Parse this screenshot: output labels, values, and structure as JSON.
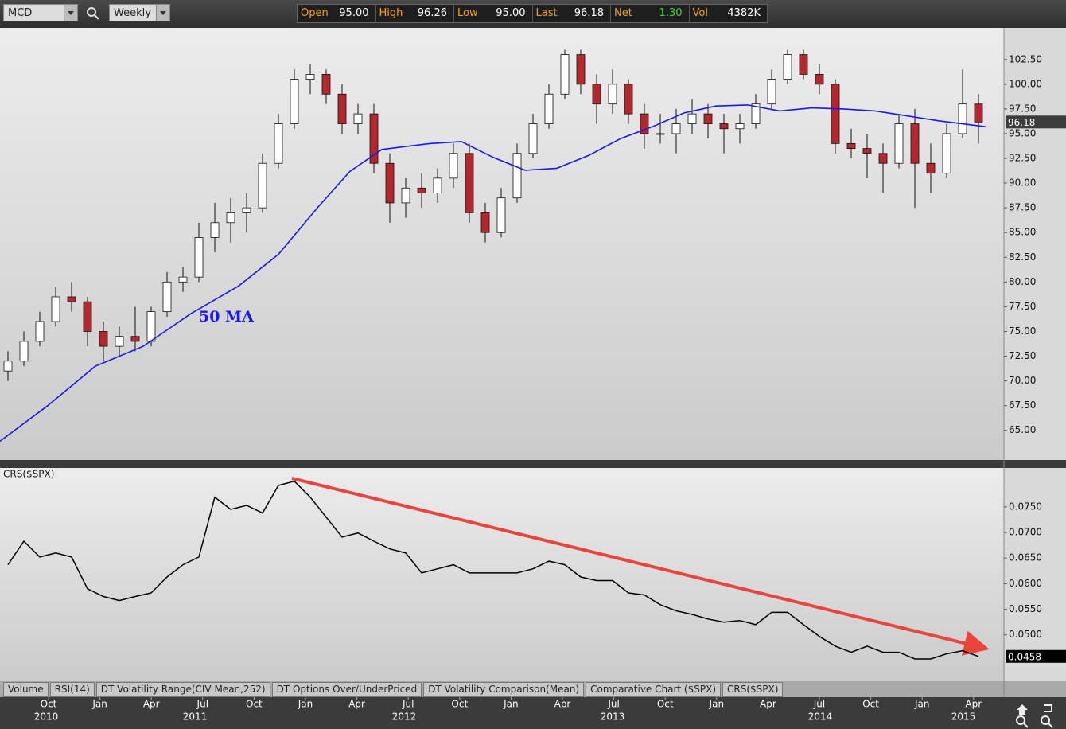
{
  "toolbar": {
    "symbol": "MCD",
    "period": "Weekly",
    "quote": [
      {
        "label": "Open",
        "value": "95.00"
      },
      {
        "label": "High",
        "value": "96.26"
      },
      {
        "label": "Low",
        "value": "95.00"
      },
      {
        "label": "Last",
        "value": "96.18"
      },
      {
        "label": "Net",
        "value": "1.30"
      },
      {
        "label": "Vol",
        "value": "4382K"
      }
    ]
  },
  "chart_data": [
    {
      "type": "candlestick",
      "up_color": "#ffffff",
      "down_color": "#b3272d",
      "xlim": [
        -0.5,
        62.6
      ],
      "ylim": [
        62.0,
        105.7
      ],
      "yticks": [
        {
          "value": 65,
          "label": "65.00"
        },
        {
          "value": 67.5,
          "label": "67.50"
        },
        {
          "value": 70,
          "label": "70.00"
        },
        {
          "value": 72.5,
          "label": "72.50"
        },
        {
          "value": 75,
          "label": "75.00"
        },
        {
          "value": 77.5,
          "label": "77.50"
        },
        {
          "value": 80,
          "label": "80.00"
        },
        {
          "value": 82.5,
          "label": "82.50"
        },
        {
          "value": 85,
          "label": "85.00"
        },
        {
          "value": 87.5,
          "label": "87.50"
        },
        {
          "value": 90,
          "label": "90.00"
        },
        {
          "value": 92.5,
          "label": "92.50"
        },
        {
          "value": 95,
          "label": "95.00"
        },
        {
          "value": 97.5,
          "label": "97.50"
        },
        {
          "value": 100,
          "label": "100.00"
        },
        {
          "value": 102.5,
          "label": "102.50"
        }
      ],
      "last": 96.18,
      "candles": [
        [
          71,
          73,
          70,
          72
        ],
        [
          72,
          75,
          71.5,
          74
        ],
        [
          74,
          77,
          73.5,
          76
        ],
        [
          76,
          79.5,
          75.5,
          78.5
        ],
        [
          78.5,
          80,
          77,
          78
        ],
        [
          78,
          78.5,
          73.5,
          75
        ],
        [
          75,
          76,
          72,
          73.5
        ],
        [
          73.5,
          75.5,
          72.5,
          74.5
        ],
        [
          74.5,
          77.5,
          73,
          74
        ],
        [
          74,
          77.5,
          73.5,
          77
        ],
        [
          77,
          81,
          76.5,
          80
        ],
        [
          80,
          81.5,
          79,
          80.5
        ],
        [
          80.5,
          86,
          80,
          84.5
        ],
        [
          84.5,
          88,
          83,
          86
        ],
        [
          86,
          88.5,
          84,
          87
        ],
        [
          87,
          89,
          85,
          87.5
        ],
        [
          87.5,
          93,
          87,
          92
        ],
        [
          92,
          97,
          91.5,
          96
        ],
        [
          96,
          101.5,
          95.5,
          100.5
        ],
        [
          100.5,
          102,
          99,
          101
        ],
        [
          101,
          101.5,
          98,
          99
        ],
        [
          99,
          100,
          95,
          96
        ],
        [
          96,
          98,
          95,
          97
        ],
        [
          97,
          98,
          91,
          92
        ],
        [
          92,
          93,
          86,
          88
        ],
        [
          88,
          90.5,
          86.5,
          89.5
        ],
        [
          89.5,
          91,
          87.5,
          89
        ],
        [
          89,
          91.5,
          88,
          90.5
        ],
        [
          90.5,
          94,
          89.5,
          93
        ],
        [
          93,
          94,
          86,
          87
        ],
        [
          87,
          88,
          84,
          85
        ],
        [
          85,
          89.5,
          84.5,
          88.5
        ],
        [
          88.5,
          94,
          88,
          93
        ],
        [
          93,
          97,
          92.5,
          96
        ],
        [
          96,
          100,
          95.5,
          99
        ],
        [
          99,
          103.5,
          98.5,
          103
        ],
        [
          103,
          103.5,
          99,
          100
        ],
        [
          100,
          101,
          96,
          98
        ],
        [
          98,
          101.5,
          97,
          100
        ],
        [
          100,
          100.5,
          96,
          97
        ],
        [
          97,
          98,
          93.5,
          95
        ],
        [
          95,
          97,
          94,
          95
        ],
        [
          95,
          97.5,
          93,
          96
        ],
        [
          96,
          98.5,
          95,
          97
        ],
        [
          97,
          98,
          94.5,
          96
        ],
        [
          96,
          97,
          93,
          95.5
        ],
        [
          95.5,
          97,
          94,
          96
        ],
        [
          96,
          99,
          95.5,
          98
        ],
        [
          98,
          101.5,
          97.5,
          100.5
        ],
        [
          100.5,
          103.5,
          100,
          103
        ],
        [
          103,
          103.5,
          100.5,
          101
        ],
        [
          101,
          102,
          99,
          100
        ],
        [
          100,
          100.5,
          93,
          94
        ],
        [
          94,
          95.5,
          92.5,
          93.5
        ],
        [
          93.5,
          95,
          90.5,
          93
        ],
        [
          93,
          94,
          89,
          92
        ],
        [
          92,
          97,
          91.5,
          96
        ],
        [
          96,
          97.5,
          87.5,
          92
        ],
        [
          92,
          94,
          89,
          91
        ],
        [
          91,
          96,
          90.5,
          95
        ],
        [
          95,
          101.5,
          94.5,
          98
        ],
        [
          98,
          99,
          94,
          96.18
        ]
      ],
      "ma": {
        "label": "50 MA",
        "color": "#1a1ae6",
        "x": [
          -0.5,
          2.5,
          5.5,
          8.5,
          11.5,
          14.5,
          17,
          19.5,
          21.5,
          23.5,
          26.5,
          28.5,
          30.5,
          32.5,
          34.5,
          36.5,
          38.5,
          40.5,
          42.5,
          44.5,
          46.5,
          48.5,
          50.5,
          52.5,
          54.5,
          56.5,
          58.5,
          61.5
        ],
        "values": [
          63.9,
          67.5,
          71.5,
          73.5,
          76.8,
          79.6,
          82.8,
          87.6,
          91.2,
          93.4,
          94.0,
          94.2,
          92.6,
          91.3,
          91.5,
          92.8,
          94.5,
          95.7,
          97.1,
          97.8,
          97.9,
          97.3,
          97.6,
          97.5,
          97.3,
          96.8,
          96.3,
          95.7
        ]
      }
    },
    {
      "type": "line",
      "title": "CRS($SPX)",
      "color": "#000000",
      "xlim": [
        -0.5,
        62.6
      ],
      "ylim": [
        0.0411,
        0.0826
      ],
      "yticks": [
        {
          "value": 0.05,
          "label": "0.0500"
        },
        {
          "value": 0.055,
          "label": "0.0550"
        },
        {
          "value": 0.06,
          "label": "0.0600"
        },
        {
          "value": 0.065,
          "label": "0.0650"
        },
        {
          "value": 0.07,
          "label": "0.0700"
        },
        {
          "value": 0.075,
          "label": "0.0750"
        }
      ],
      "last": 0.0458,
      "values": [
        0.0637,
        0.0683,
        0.0652,
        0.066,
        0.0652,
        0.059,
        0.0575,
        0.0567,
        0.0575,
        0.0582,
        0.0613,
        0.0637,
        0.0652,
        0.0769,
        0.0745,
        0.0753,
        0.0738,
        0.0792,
        0.08,
        0.0769,
        0.073,
        0.0691,
        0.0699,
        0.0683,
        0.0668,
        0.066,
        0.0621,
        0.0629,
        0.0637,
        0.0621,
        0.0621,
        0.0621,
        0.0621,
        0.0629,
        0.0644,
        0.0637,
        0.0613,
        0.0606,
        0.0606,
        0.0582,
        0.0578,
        0.0559,
        0.0547,
        0.054,
        0.0531,
        0.0525,
        0.0528,
        0.052,
        0.0544,
        0.0544,
        0.052,
        0.0497,
        0.0478,
        0.0466,
        0.0478,
        0.0466,
        0.0466,
        0.0453,
        0.0453,
        0.0463,
        0.0469,
        0.0458
      ],
      "xticks": [
        {
          "value": 2.55,
          "label": "Oct"
        },
        {
          "value": 5.78,
          "label": "Jan"
        },
        {
          "value": 9.01,
          "label": "Apr"
        },
        {
          "value": 12.24,
          "label": "Jul"
        },
        {
          "value": 15.47,
          "label": "Oct"
        },
        {
          "value": 18.7,
          "label": "Jan"
        },
        {
          "value": 21.93,
          "label": "Apr"
        },
        {
          "value": 25.16,
          "label": "Jul"
        },
        {
          "value": 28.39,
          "label": "Oct"
        },
        {
          "value": 31.62,
          "label": "Jan"
        },
        {
          "value": 34.85,
          "label": "Apr"
        },
        {
          "value": 38.08,
          "label": "Jul"
        },
        {
          "value": 41.31,
          "label": "Oct"
        },
        {
          "value": 44.54,
          "label": "Jan"
        },
        {
          "value": 47.77,
          "label": "Apr"
        },
        {
          "value": 51.0,
          "label": "Jul"
        },
        {
          "value": 54.23,
          "label": "Oct"
        },
        {
          "value": 57.46,
          "label": "Jan"
        },
        {
          "value": 60.69,
          "label": "Apr"
        }
      ],
      "year_labels": [
        {
          "value": 2.4,
          "label": "2010"
        },
        {
          "value": 11.75,
          "label": "2011"
        },
        {
          "value": 24.9,
          "label": "2012"
        },
        {
          "value": 38.0,
          "label": "2013"
        },
        {
          "value": 51.05,
          "label": "2014"
        },
        {
          "value": 60.05,
          "label": "2015"
        }
      ]
    }
  ],
  "tabs": [
    "Volume",
    "RSI(14)",
    "DT Volatility Range(CIV Mean,252)",
    "DT Options Over/UnderPriced",
    "DT Volatility Comparison(Mean)",
    "Comparative Chart ($SPX)",
    "CRS($SPX)"
  ]
}
